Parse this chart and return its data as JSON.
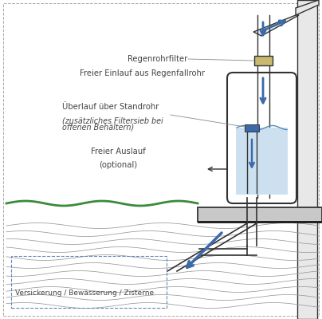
{
  "bg_color": "#ffffff",
  "line_color": "#333333",
  "blue_arrow": "#3a6aaa",
  "green_color": "#3a8a3a",
  "gray_fill": "#c8c8c8",
  "tan_fill": "#c8b870",
  "water_color": "#cce0f0",
  "water_line": "#5588bb",
  "wall_color": "#e8e8e8",
  "label_color": "#444444",
  "fontsize": 7.2,
  "labels": {
    "regenrohrfilter": "Regenrohrfilter",
    "freier_einlauf": "Freier Einlauf aus Regenfallrohr",
    "ueberlauf_1": "Überlauf über Standrohr",
    "ueberlauf_2": "(zusätzliches Filtersieb bei",
    "ueberlauf_3": "offenen Behältern)",
    "freier_auslauf_1": "Freier Auslauf",
    "freier_auslauf_2": "(optional)",
    "versickerung": "Versickerung / Bewässerung / Zisterne"
  }
}
